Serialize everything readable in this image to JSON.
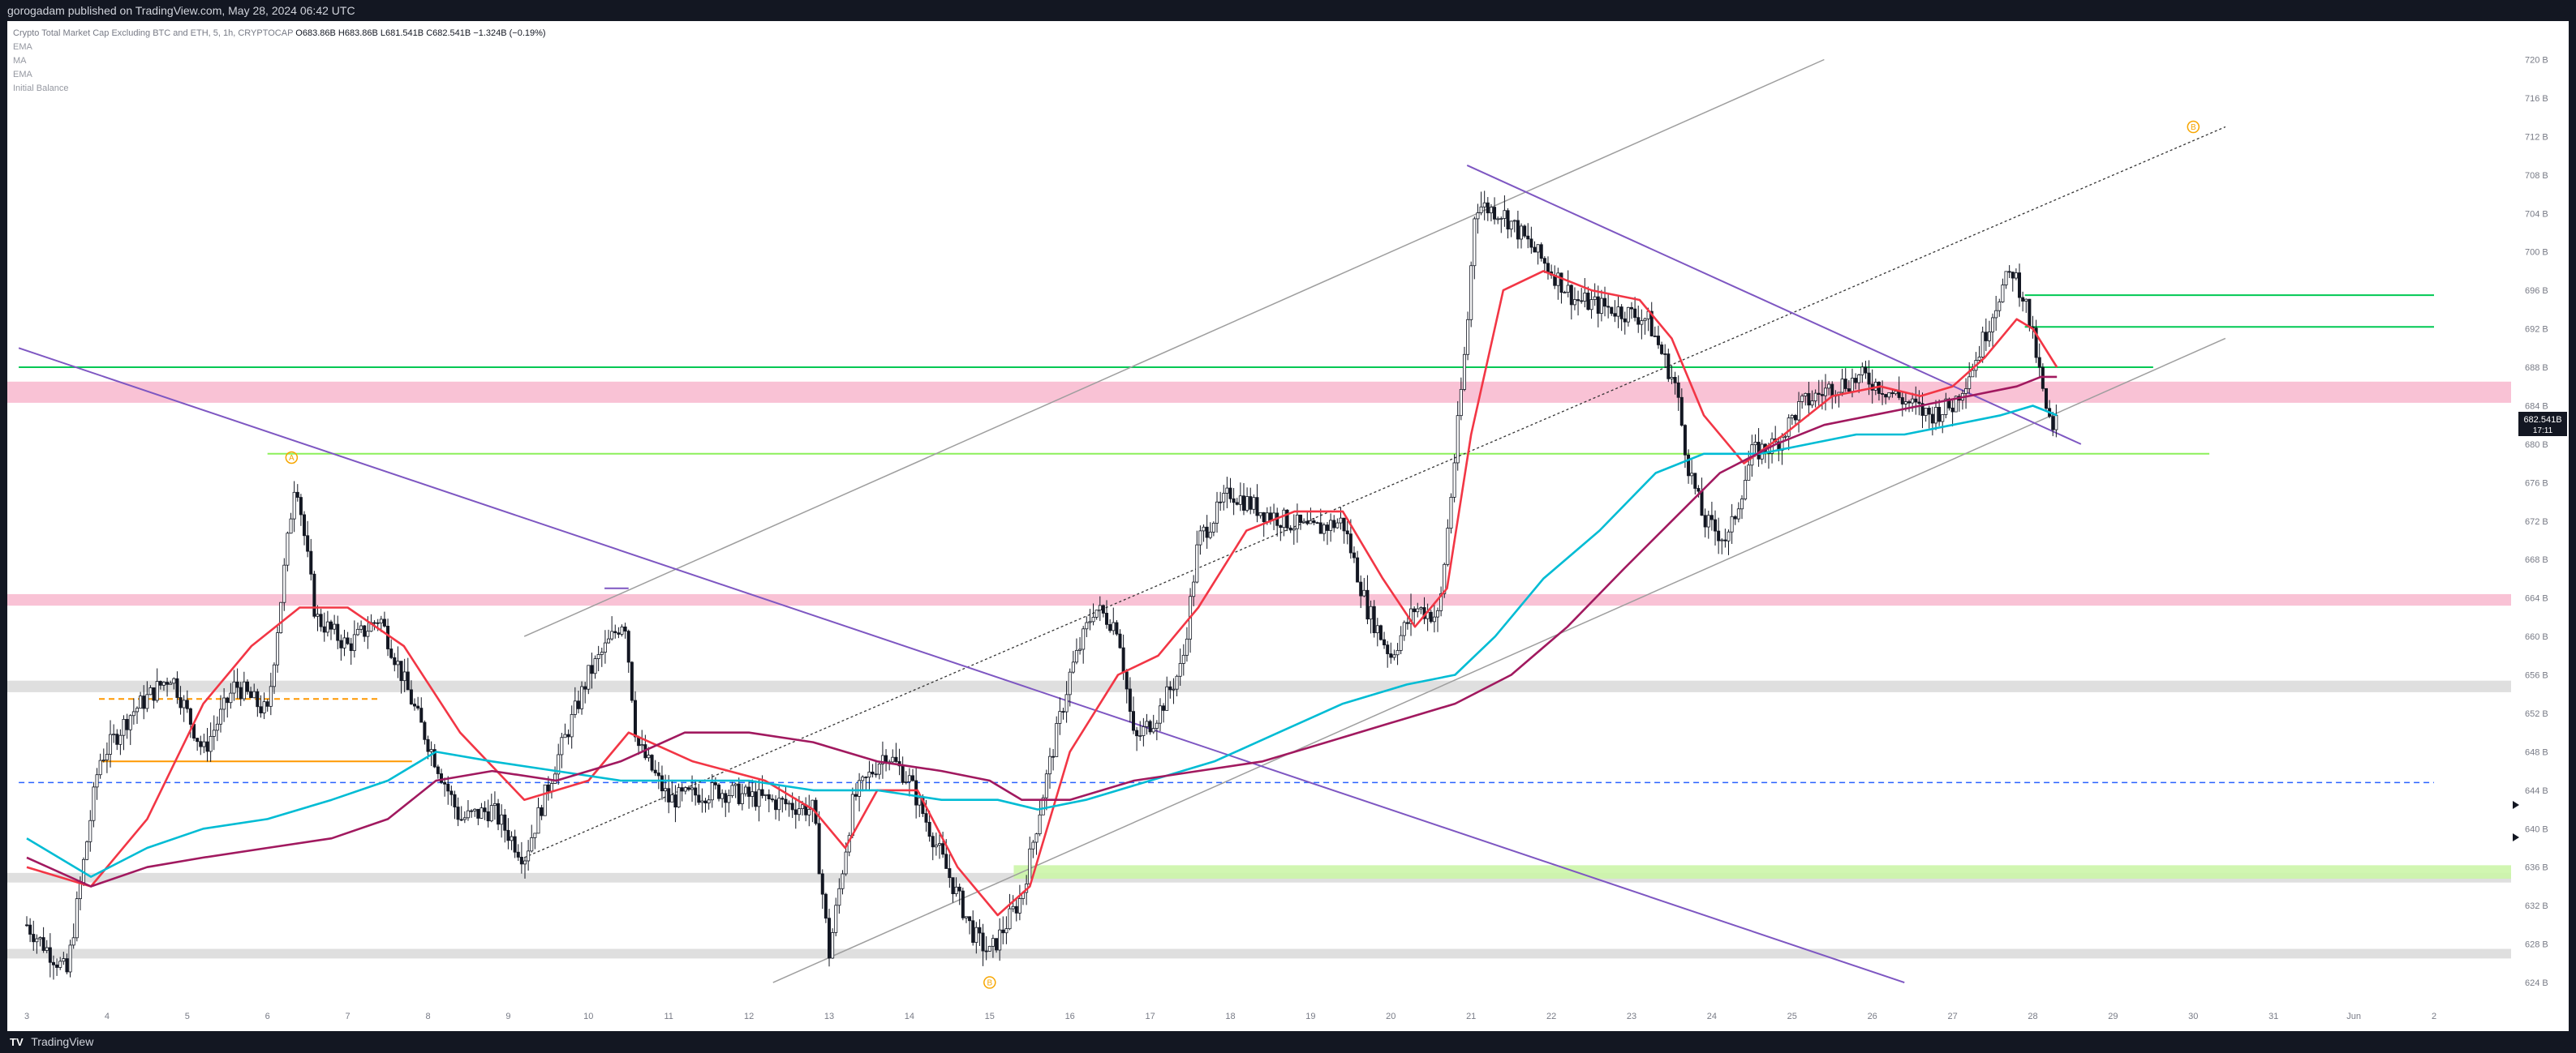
{
  "header": {
    "publisher_line": "gorogadam published on TradingView.com, May 28, 2024 06:42 UTC"
  },
  "legend": {
    "symbol": "Crypto Total Market Cap Excluding BTC and ETH, 5, 1h, CRYPTOCAP",
    "open": "O683.86B",
    "high": "H683.86B",
    "low": "L681.541B",
    "close": "C682.541B",
    "change": "−1.324B (−0.19%)",
    "indicators": [
      "EMA",
      "MA",
      "EMA",
      "Initial Balance"
    ]
  },
  "price_badge": {
    "price": "682.541B",
    "countdown": "17:11"
  },
  "footer": {
    "brand": "TradingView"
  },
  "colors": {
    "candle": "#131722",
    "ema_fast": "#f23645",
    "ema_mid": "#00bcd4",
    "ma_slow": "#a1195f",
    "trendline": "#7e57c2",
    "channel": "#9e9e9e",
    "resistance_zone": "#f8bbd0",
    "support_zone": "#ccf5a8",
    "neutral_zone": "#dcdcdc",
    "level_green": "#00c853",
    "level_lightgreen": "#8cf05a",
    "level_orange": "#ff9800",
    "level_blue": "#2962ff",
    "wave_label": "#f7a600"
  },
  "chart_data": {
    "type": "candlestick",
    "interval": "1h",
    "unit": "B",
    "y_ticks": [
      "720 B",
      "716 B",
      "712 B",
      "708 B",
      "704 B",
      "700 B",
      "696 B",
      "692 B",
      "688 B",
      "684 B",
      "680 B",
      "676 B",
      "672 B",
      "668 B",
      "664 B",
      "660 B",
      "656 B",
      "652 B",
      "648 B",
      "644 B",
      "640 B",
      "636 B",
      "632 B",
      "628 B",
      "624 B"
    ],
    "ylim": [
      623,
      721
    ],
    "x_ticks": [
      "3",
      "4",
      "5",
      "6",
      "7",
      "8",
      "9",
      "10",
      "11",
      "12",
      "13",
      "14",
      "15",
      "16",
      "17",
      "18",
      "19",
      "20",
      "21",
      "22",
      "23",
      "24",
      "25",
      "26",
      "27",
      "28",
      "29",
      "30",
      "31",
      "Jun",
      "2"
    ],
    "price_path": [
      [
        3.0,
        630
      ],
      [
        3.5,
        625
      ],
      [
        3.9,
        647
      ],
      [
        4.3,
        652
      ],
      [
        4.8,
        656
      ],
      [
        5.2,
        648
      ],
      [
        5.6,
        655
      ],
      [
        6.0,
        652
      ],
      [
        6.35,
        677
      ],
      [
        6.6,
        662
      ],
      [
        7.0,
        659
      ],
      [
        7.4,
        662
      ],
      [
        7.9,
        651
      ],
      [
        8.4,
        641
      ],
      [
        8.8,
        642
      ],
      [
        9.2,
        637
      ],
      [
        9.6,
        647
      ],
      [
        10.0,
        656
      ],
      [
        10.45,
        662
      ],
      [
        10.6,
        649
      ],
      [
        11.0,
        643
      ],
      [
        11.6,
        644
      ],
      [
        12.2,
        643
      ],
      [
        12.8,
        642
      ],
      [
        13.0,
        627
      ],
      [
        13.3,
        643
      ],
      [
        13.7,
        648
      ],
      [
        14.0,
        645
      ],
      [
        14.4,
        637
      ],
      [
        14.8,
        629
      ],
      [
        15.0,
        627
      ],
      [
        15.4,
        633
      ],
      [
        15.7,
        645
      ],
      [
        16.0,
        656
      ],
      [
        16.3,
        663
      ],
      [
        16.6,
        661
      ],
      [
        16.8,
        649
      ],
      [
        17.1,
        652
      ],
      [
        17.4,
        657
      ],
      [
        17.6,
        670
      ],
      [
        18.0,
        675
      ],
      [
        18.4,
        673
      ],
      [
        18.7,
        672
      ],
      [
        19.0,
        671
      ],
      [
        19.4,
        672
      ],
      [
        19.7,
        663
      ],
      [
        20.0,
        658
      ],
      [
        20.3,
        663
      ],
      [
        20.6,
        662
      ],
      [
        20.8,
        679
      ],
      [
        20.95,
        692
      ],
      [
        21.05,
        705
      ],
      [
        21.4,
        704
      ],
      [
        21.8,
        700
      ],
      [
        22.3,
        695
      ],
      [
        22.8,
        694
      ],
      [
        23.2,
        693
      ],
      [
        23.55,
        686
      ],
      [
        23.7,
        678
      ],
      [
        23.9,
        672
      ],
      [
        24.2,
        670
      ],
      [
        24.5,
        679
      ],
      [
        24.8,
        680
      ],
      [
        25.1,
        684
      ],
      [
        25.5,
        686
      ],
      [
        25.9,
        687
      ],
      [
        26.3,
        685
      ],
      [
        26.7,
        683
      ],
      [
        27.0,
        684
      ],
      [
        27.3,
        689
      ],
      [
        27.6,
        696
      ],
      [
        27.75,
        698
      ],
      [
        27.9,
        695
      ],
      [
        28.05,
        689
      ],
      [
        28.15,
        684
      ],
      [
        28.25,
        681
      ],
      [
        28.3,
        682.541
      ]
    ],
    "series": [
      {
        "name": "EMA",
        "points": [
          [
            3.0,
            636
          ],
          [
            3.8,
            634
          ],
          [
            4.5,
            641
          ],
          [
            5.2,
            653
          ],
          [
            5.8,
            659
          ],
          [
            6.4,
            663
          ],
          [
            7.0,
            663
          ],
          [
            7.7,
            659
          ],
          [
            8.4,
            650
          ],
          [
            9.2,
            643
          ],
          [
            10.0,
            645
          ],
          [
            10.5,
            650
          ],
          [
            11.3,
            647
          ],
          [
            12.2,
            645
          ],
          [
            12.8,
            642
          ],
          [
            13.2,
            638
          ],
          [
            13.6,
            644
          ],
          [
            14.1,
            644
          ],
          [
            14.6,
            636
          ],
          [
            15.1,
            631
          ],
          [
            15.5,
            634
          ],
          [
            16.0,
            648
          ],
          [
            16.6,
            656
          ],
          [
            17.1,
            658
          ],
          [
            17.6,
            663
          ],
          [
            18.2,
            671
          ],
          [
            18.8,
            673
          ],
          [
            19.4,
            673
          ],
          [
            19.9,
            666
          ],
          [
            20.3,
            661
          ],
          [
            20.7,
            665
          ],
          [
            21.0,
            681
          ],
          [
            21.4,
            696
          ],
          [
            21.9,
            698
          ],
          [
            22.5,
            696
          ],
          [
            23.1,
            695
          ],
          [
            23.5,
            691
          ],
          [
            23.9,
            683
          ],
          [
            24.4,
            678
          ],
          [
            24.9,
            681
          ],
          [
            25.5,
            685
          ],
          [
            26.1,
            686
          ],
          [
            26.6,
            685
          ],
          [
            27.0,
            686
          ],
          [
            27.4,
            689
          ],
          [
            27.8,
            693
          ],
          [
            28.0,
            692
          ],
          [
            28.3,
            688
          ]
        ]
      },
      {
        "name": "EMA",
        "points": [
          [
            3.0,
            639
          ],
          [
            3.8,
            635
          ],
          [
            4.5,
            638
          ],
          [
            5.2,
            640
          ],
          [
            6.0,
            641
          ],
          [
            6.8,
            643
          ],
          [
            7.5,
            645
          ],
          [
            8.1,
            648
          ],
          [
            8.8,
            647
          ],
          [
            9.6,
            646
          ],
          [
            10.4,
            645
          ],
          [
            11.2,
            645
          ],
          [
            12.0,
            645
          ],
          [
            12.8,
            644
          ],
          [
            13.6,
            644
          ],
          [
            14.4,
            643
          ],
          [
            15.1,
            643
          ],
          [
            15.6,
            642
          ],
          [
            16.2,
            643
          ],
          [
            17.0,
            645
          ],
          [
            17.8,
            647
          ],
          [
            18.6,
            650
          ],
          [
            19.4,
            653
          ],
          [
            20.2,
            655
          ],
          [
            20.8,
            656
          ],
          [
            21.3,
            660
          ],
          [
            21.9,
            666
          ],
          [
            22.6,
            671
          ],
          [
            23.3,
            677
          ],
          [
            23.9,
            679
          ],
          [
            24.6,
            679
          ],
          [
            25.2,
            680
          ],
          [
            25.8,
            681
          ],
          [
            26.4,
            681
          ],
          [
            27.0,
            682
          ],
          [
            27.6,
            683
          ],
          [
            28.0,
            684
          ],
          [
            28.3,
            683
          ]
        ]
      },
      {
        "name": "MA",
        "points": [
          [
            3.0,
            637
          ],
          [
            3.8,
            634
          ],
          [
            4.5,
            636
          ],
          [
            5.2,
            637
          ],
          [
            6.0,
            638
          ],
          [
            6.8,
            639
          ],
          [
            7.5,
            641
          ],
          [
            8.1,
            645
          ],
          [
            8.8,
            646
          ],
          [
            9.6,
            645
          ],
          [
            10.4,
            647
          ],
          [
            11.2,
            650
          ],
          [
            12.0,
            650
          ],
          [
            12.8,
            649
          ],
          [
            13.6,
            647
          ],
          [
            14.4,
            646
          ],
          [
            15.0,
            645
          ],
          [
            15.4,
            643
          ],
          [
            16.0,
            643
          ],
          [
            16.8,
            645
          ],
          [
            17.6,
            646
          ],
          [
            18.4,
            647
          ],
          [
            19.2,
            649
          ],
          [
            20.0,
            651
          ],
          [
            20.8,
            653
          ],
          [
            21.5,
            656
          ],
          [
            22.2,
            661
          ],
          [
            22.9,
            667
          ],
          [
            23.5,
            672
          ],
          [
            24.1,
            677
          ],
          [
            24.8,
            680
          ],
          [
            25.4,
            682
          ],
          [
            26.0,
            683
          ],
          [
            26.6,
            684
          ],
          [
            27.2,
            685
          ],
          [
            27.8,
            686
          ],
          [
            28.1,
            687
          ],
          [
            28.3,
            687
          ]
        ]
      }
    ],
    "drawings": {
      "rising_channel": {
        "upper": [
          [
            9.2,
            660
          ],
          [
            25.4,
            720
          ]
        ],
        "lower": [
          [
            12.3,
            624
          ],
          [
            30.4,
            691
          ]
        ],
        "mid": [
          [
            9.2,
            637
          ],
          [
            30.4,
            713
          ]
        ]
      },
      "descending_trendlines": [
        [
          [
            2.9,
            690
          ],
          [
            26.4,
            624
          ]
        ],
        [
          [
            20.95,
            709
          ],
          [
            28.6,
            680
          ]
        ],
        [
          [
            10.2,
            665
          ],
          [
            10.5,
            665
          ]
        ]
      ],
      "horizontal_levels": [
        {
          "price": 688.0,
          "color": "level_green",
          "from": 2.9,
          "to": 29.5
        },
        {
          "price": 695.5,
          "color": "level_green",
          "from": 27.9,
          "to": 33.0
        },
        {
          "price": 692.2,
          "color": "level_green",
          "from": 27.9,
          "to": 33.0
        },
        {
          "price": 679.0,
          "color": "level_lightgreen",
          "from": 6.0,
          "to": 30.2
        },
        {
          "price": 653.5,
          "color": "level_orange",
          "from": 3.9,
          "to": 7.4
        },
        {
          "price": 647.0,
          "color": "level_orange",
          "from": 3.9,
          "to": 7.8
        },
        {
          "price": 644.8,
          "color": "level_blue",
          "from": 2.9,
          "to": 33.0
        }
      ],
      "zones": [
        {
          "from_price": 684.3,
          "to_price": 686.5,
          "color": "resistance_zone"
        },
        {
          "from_price": 663.2,
          "to_price": 664.4,
          "color": "resistance_zone"
        },
        {
          "from_price": 654.2,
          "to_price": 655.4,
          "color": "neutral_zone"
        },
        {
          "from_price": 634.4,
          "to_price": 635.4,
          "color": "neutral_zone"
        },
        {
          "from_price": 626.5,
          "to_price": 627.5,
          "color": "neutral_zone"
        },
        {
          "from_price": 634.8,
          "to_price": 636.2,
          "color": "support_zone"
        }
      ],
      "wave_labels": [
        {
          "text": "A",
          "x": 6.3,
          "y": 678.6
        },
        {
          "text": "B",
          "x": 15.0,
          "y": 624.0
        },
        {
          "text": "B",
          "x": 30.0,
          "y": 713.0
        }
      ]
    }
  }
}
